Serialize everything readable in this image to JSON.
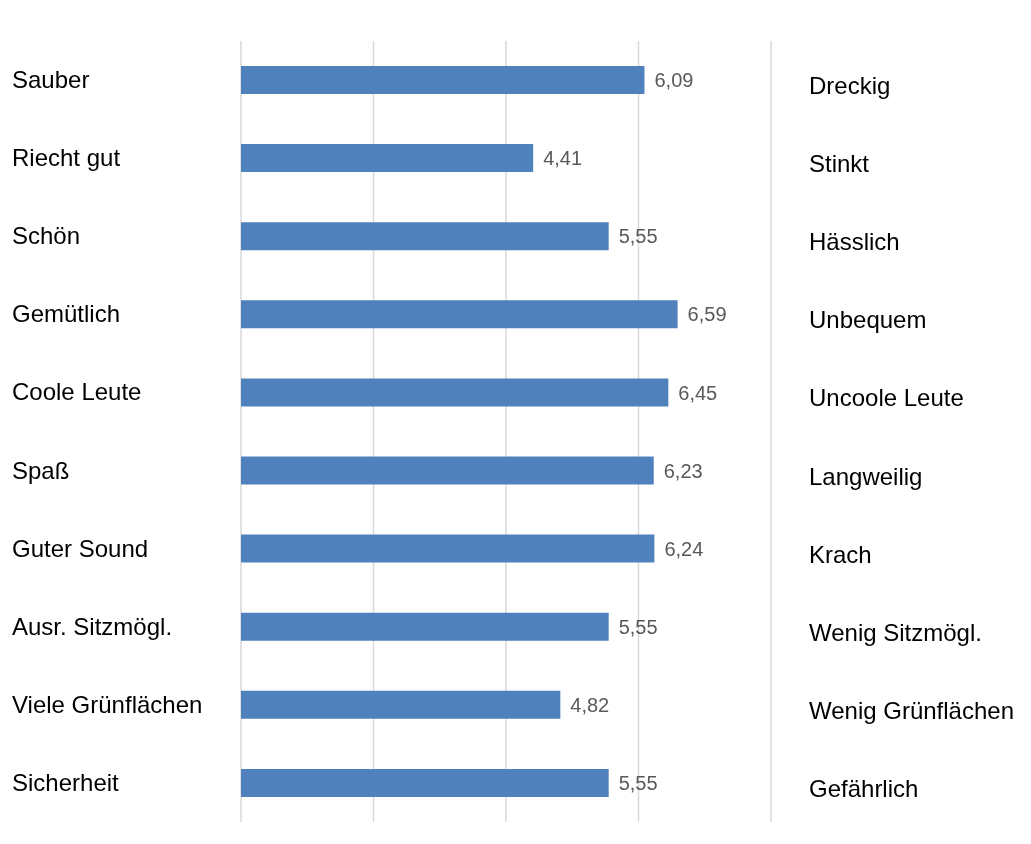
{
  "chart_data": {
    "type": "bar",
    "orientation": "horizontal",
    "categories": [
      "Sauber",
      "Riecht gut",
      "Schön",
      "Gemütlich",
      "Coole Leute",
      "Spaß",
      "Guter Sound",
      "Ausr. Sitzmögl.",
      "Viele Grünflächen",
      "Sicherheit"
    ],
    "y2_categories": [
      "Dreckig",
      "Stinkt",
      "Hässlich",
      "Unbequem",
      "Uncoole Leute",
      "Langweilig",
      "Krach",
      "Wenig Sitzmögl.",
      "Wenig Grünflächen",
      "Gefährlich"
    ],
    "values": [
      6.09,
      4.41,
      5.55,
      6.59,
      6.45,
      6.23,
      6.24,
      5.55,
      4.82,
      5.55
    ],
    "value_labels": [
      "6,09",
      "4,41",
      "5,55",
      "6,59",
      "6,45",
      "6,23",
      "6,24",
      "5,55",
      "4,82",
      "5,55"
    ],
    "color": "#4f81bd",
    "xlim": [
      0,
      8
    ],
    "xticks": [
      {
        "value": 0,
        "label": null
      },
      {
        "value": 2,
        "label": null
      },
      {
        "value": 4,
        "label": null
      },
      {
        "value": 6,
        "label": null
      },
      {
        "value": 8,
        "label": null
      }
    ],
    "grid": "x",
    "tick_labels": "y",
    "legend": false
  }
}
